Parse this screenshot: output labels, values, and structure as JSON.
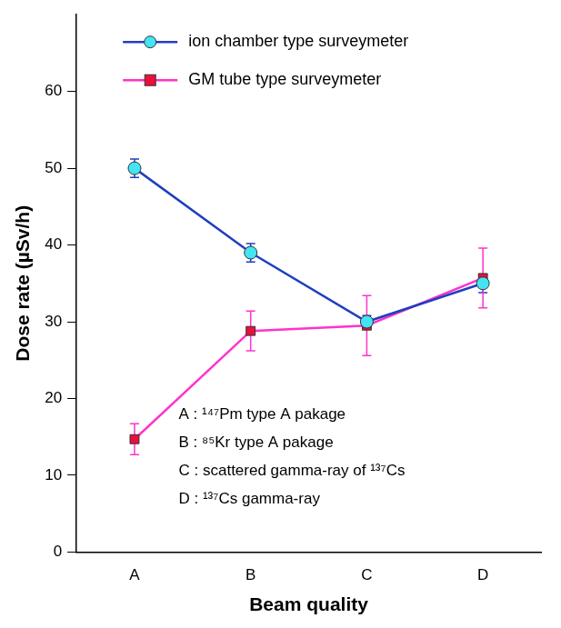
{
  "chart_data": {
    "type": "line",
    "x_label": "Beam quality",
    "y_label": "Dose rate (µSv/h)",
    "categories": [
      "A",
      "B",
      "C",
      "D"
    ],
    "series": [
      {
        "name": "ion chamber type surveymeter",
        "color": "#1f3fbf",
        "marker": "circle",
        "values": [
          50,
          39,
          30,
          35
        ],
        "errors": [
          1.2,
          1.2,
          0.8,
          1.2
        ]
      },
      {
        "name": "GM tube type surveymeter",
        "color": "#ff33cc",
        "marker": "square",
        "values": [
          14.7,
          28.8,
          29.5,
          35.7
        ],
        "errors": [
          2.0,
          2.6,
          3.9,
          3.9
        ]
      }
    ],
    "ylim": [
      0,
      70
    ],
    "yticks": [
      0,
      10,
      20,
      30,
      40,
      50,
      60
    ],
    "grid": false,
    "legend": "top",
    "annotations": [
      "A : ¹⁴⁷Pm type A pakage",
      "B : ⁸⁵Kr type A pakage",
      "C : scattered gamma-ray of ¹³⁷Cs",
      "D : ¹³⁷Cs gamma-ray"
    ]
  }
}
